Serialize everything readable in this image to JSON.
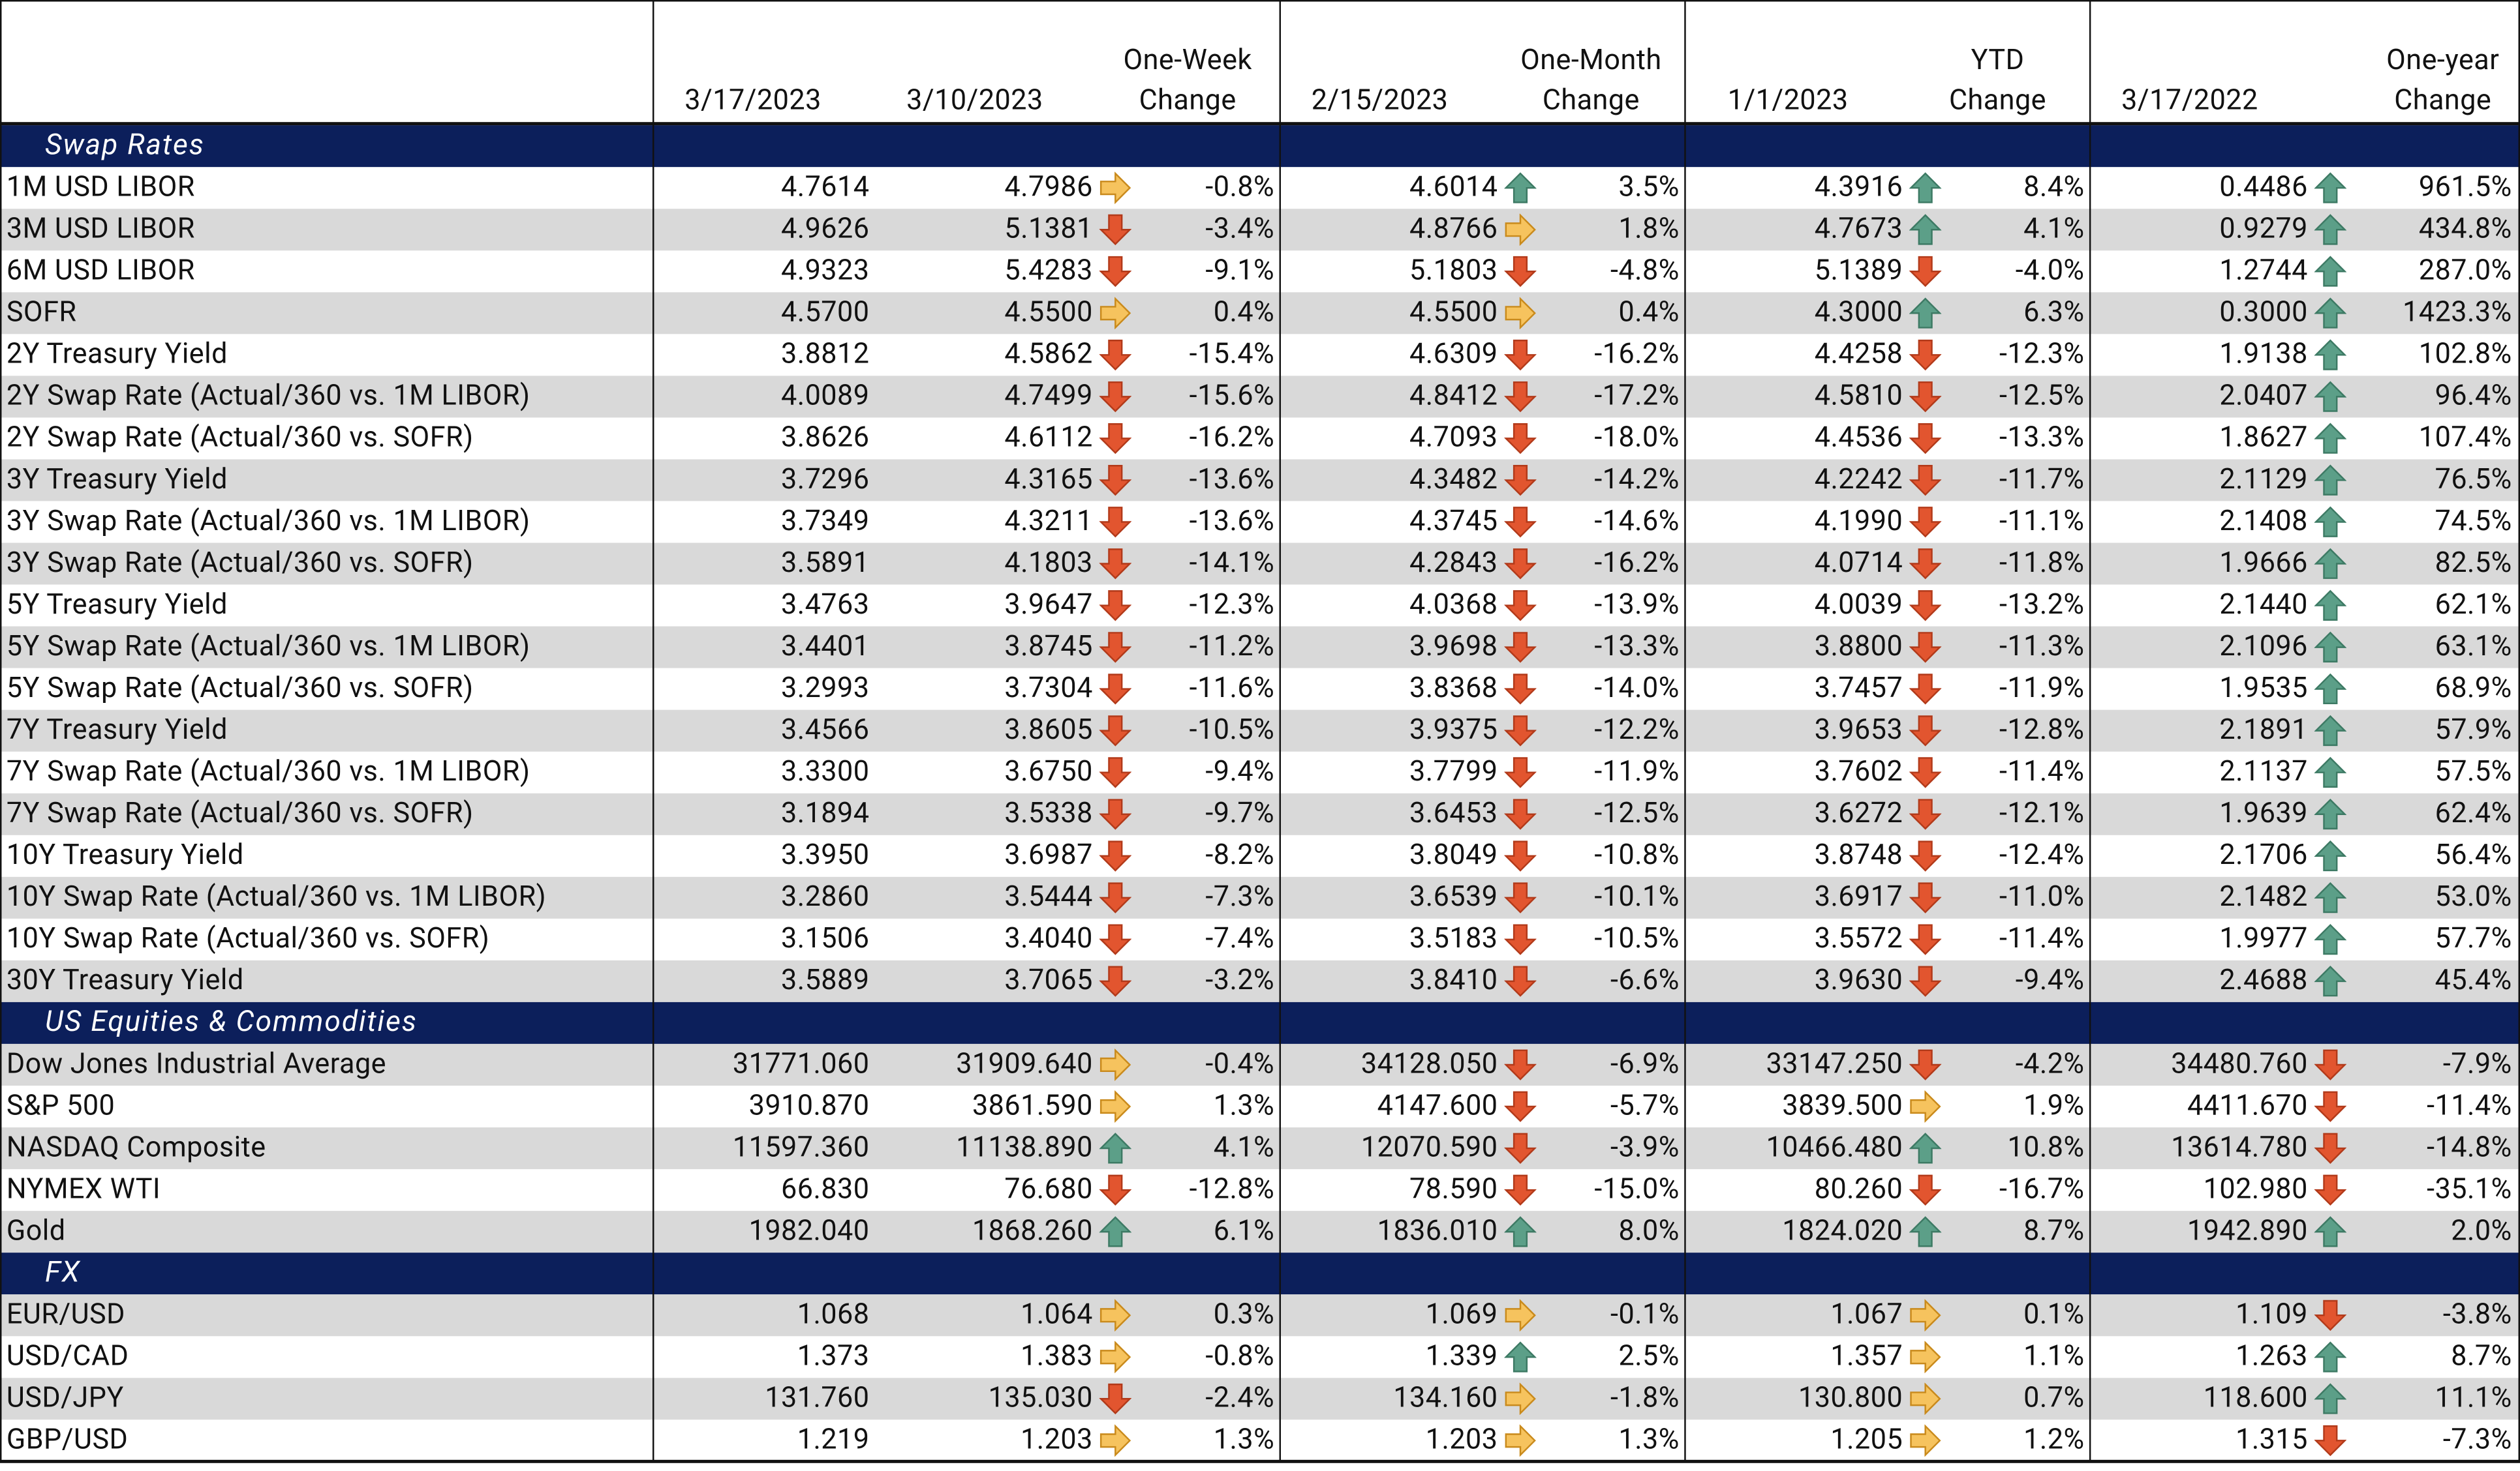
{
  "header": {
    "dates": [
      "3/17/2023",
      "3/10/2023",
      "2/15/2023",
      "1/1/2023",
      "3/17/2022"
    ],
    "changes": [
      [
        "One-Week",
        "Change"
      ],
      [
        "One-Month",
        "Change"
      ],
      [
        "YTD",
        "Change"
      ],
      [
        "One-year",
        "Change"
      ]
    ]
  },
  "sections": [
    {
      "title": "Swap Rates",
      "rows": [
        {
          "label": "1M USD LIBOR",
          "cells": [
            "4.7614",
            "4.7986",
            "-0.8%",
            "4.6014",
            "3.5%",
            "4.3916",
            "8.4%",
            "0.4486",
            "961.5%"
          ]
        },
        {
          "label": "3M USD LIBOR",
          "cells": [
            "4.9626",
            "5.1381",
            "-3.4%",
            "4.8766",
            "1.8%",
            "4.7673",
            "4.1%",
            "0.9279",
            "434.8%"
          ]
        },
        {
          "label": "6M USD LIBOR",
          "cells": [
            "4.9323",
            "5.4283",
            "-9.1%",
            "5.1803",
            "-4.8%",
            "5.1389",
            "-4.0%",
            "1.2744",
            "287.0%"
          ]
        },
        {
          "label": "SOFR",
          "cells": [
            "4.5700",
            "4.5500",
            "0.4%",
            "4.5500",
            "0.4%",
            "4.3000",
            "6.3%",
            "0.3000",
            "1423.3%"
          ]
        },
        {
          "label": "2Y Treasury Yield",
          "cells": [
            "3.8812",
            "4.5862",
            "-15.4%",
            "4.6309",
            "-16.2%",
            "4.4258",
            "-12.3%",
            "1.9138",
            "102.8%"
          ]
        },
        {
          "label": "2Y Swap Rate (Actual/360 vs. 1M LIBOR)",
          "cells": [
            "4.0089",
            "4.7499",
            "-15.6%",
            "4.8412",
            "-17.2%",
            "4.5810",
            "-12.5%",
            "2.0407",
            "96.4%"
          ]
        },
        {
          "label": "2Y Swap Rate (Actual/360 vs. SOFR)",
          "cells": [
            "3.8626",
            "4.6112",
            "-16.2%",
            "4.7093",
            "-18.0%",
            "4.4536",
            "-13.3%",
            "1.8627",
            "107.4%"
          ]
        },
        {
          "label": "3Y Treasury Yield",
          "cells": [
            "3.7296",
            "4.3165",
            "-13.6%",
            "4.3482",
            "-14.2%",
            "4.2242",
            "-11.7%",
            "2.1129",
            "76.5%"
          ]
        },
        {
          "label": "3Y Swap Rate (Actual/360 vs. 1M LIBOR)",
          "cells": [
            "3.7349",
            "4.3211",
            "-13.6%",
            "4.3745",
            "-14.6%",
            "4.1990",
            "-11.1%",
            "2.1408",
            "74.5%"
          ]
        },
        {
          "label": "3Y Swap Rate (Actual/360 vs. SOFR)",
          "cells": [
            "3.5891",
            "4.1803",
            "-14.1%",
            "4.2843",
            "-16.2%",
            "4.0714",
            "-11.8%",
            "1.9666",
            "82.5%"
          ]
        },
        {
          "label": "5Y Treasury Yield",
          "cells": [
            "3.4763",
            "3.9647",
            "-12.3%",
            "4.0368",
            "-13.9%",
            "4.0039",
            "-13.2%",
            "2.1440",
            "62.1%"
          ]
        },
        {
          "label": "5Y Swap Rate (Actual/360 vs. 1M LIBOR)",
          "cells": [
            "3.4401",
            "3.8745",
            "-11.2%",
            "3.9698",
            "-13.3%",
            "3.8800",
            "-11.3%",
            "2.1096",
            "63.1%"
          ]
        },
        {
          "label": "5Y Swap Rate (Actual/360 vs. SOFR)",
          "cells": [
            "3.2993",
            "3.7304",
            "-11.6%",
            "3.8368",
            "-14.0%",
            "3.7457",
            "-11.9%",
            "1.9535",
            "68.9%"
          ]
        },
        {
          "label": "7Y Treasury Yield",
          "cells": [
            "3.4566",
            "3.8605",
            "-10.5%",
            "3.9375",
            "-12.2%",
            "3.9653",
            "-12.8%",
            "2.1891",
            "57.9%"
          ]
        },
        {
          "label": "7Y Swap Rate (Actual/360 vs. 1M LIBOR)",
          "cells": [
            "3.3300",
            "3.6750",
            "-9.4%",
            "3.7799",
            "-11.9%",
            "3.7602",
            "-11.4%",
            "2.1137",
            "57.5%"
          ]
        },
        {
          "label": "7Y Swap Rate (Actual/360 vs. SOFR)",
          "cells": [
            "3.1894",
            "3.5338",
            "-9.7%",
            "3.6453",
            "-12.5%",
            "3.6272",
            "-12.1%",
            "1.9639",
            "62.4%"
          ]
        },
        {
          "label": "10Y Treasury Yield",
          "cells": [
            "3.3950",
            "3.6987",
            "-8.2%",
            "3.8049",
            "-10.8%",
            "3.8748",
            "-12.4%",
            "2.1706",
            "56.4%"
          ]
        },
        {
          "label": "10Y Swap Rate (Actual/360 vs. 1M LIBOR)",
          "cells": [
            "3.2860",
            "3.5444",
            "-7.3%",
            "3.6539",
            "-10.1%",
            "3.6917",
            "-11.0%",
            "2.1482",
            "53.0%"
          ]
        },
        {
          "label": "10Y Swap Rate (Actual/360 vs. SOFR)",
          "cells": [
            "3.1506",
            "3.4040",
            "-7.4%",
            "3.5183",
            "-10.5%",
            "3.5572",
            "-11.4%",
            "1.9977",
            "57.7%"
          ]
        },
        {
          "label": "30Y Treasury Yield",
          "cells": [
            "3.5889",
            "3.7065",
            "-3.2%",
            "3.8410",
            "-6.6%",
            "3.9630",
            "-9.4%",
            "2.4688",
            "45.4%"
          ]
        }
      ]
    },
    {
      "title": "US Equities & Commodities",
      "rows": [
        {
          "label": "Dow Jones Industrial Average",
          "cells": [
            "31771.060",
            "31909.640",
            "-0.4%",
            "34128.050",
            "-6.9%",
            "33147.250",
            "-4.2%",
            "34480.760",
            "-7.9%"
          ]
        },
        {
          "label": "S&P 500",
          "cells": [
            "3910.870",
            "3861.590",
            "1.3%",
            "4147.600",
            "-5.7%",
            "3839.500",
            "1.9%",
            "4411.670",
            "-11.4%"
          ]
        },
        {
          "label": "NASDAQ Composite",
          "cells": [
            "11597.360",
            "11138.890",
            "4.1%",
            "12070.590",
            "-3.9%",
            "10466.480",
            "10.8%",
            "13614.780",
            "-14.8%"
          ]
        },
        {
          "label": "NYMEX WTI",
          "cells": [
            "66.830",
            "76.680",
            "-12.8%",
            "78.590",
            "-15.0%",
            "80.260",
            "-16.7%",
            "102.980",
            "-35.1%"
          ]
        },
        {
          "label": "Gold",
          "cells": [
            "1982.040",
            "1868.260",
            "6.1%",
            "1836.010",
            "8.0%",
            "1824.020",
            "8.7%",
            "1942.890",
            "2.0%"
          ]
        }
      ]
    },
    {
      "title": "FX",
      "rows": [
        {
          "label": "EUR/USD",
          "cells": [
            "1.068",
            "1.064",
            "0.3%",
            "1.069",
            "-0.1%",
            "1.067",
            "0.1%",
            "1.109",
            "-3.8%"
          ]
        },
        {
          "label": "USD/CAD",
          "cells": [
            "1.373",
            "1.383",
            "-0.8%",
            "1.339",
            "2.5%",
            "1.357",
            "1.1%",
            "1.263",
            "8.7%"
          ]
        },
        {
          "label": "USD/JPY",
          "cells": [
            "131.760",
            "135.030",
            "-2.4%",
            "134.160",
            "-1.8%",
            "130.800",
            "0.7%",
            "118.600",
            "11.1%"
          ]
        },
        {
          "label": "GBP/USD",
          "cells": [
            "1.219",
            "1.203",
            "1.3%",
            "1.203",
            "1.3%",
            "1.205",
            "1.2%",
            "1.315",
            "-7.3%"
          ]
        }
      ]
    }
  ]
}
